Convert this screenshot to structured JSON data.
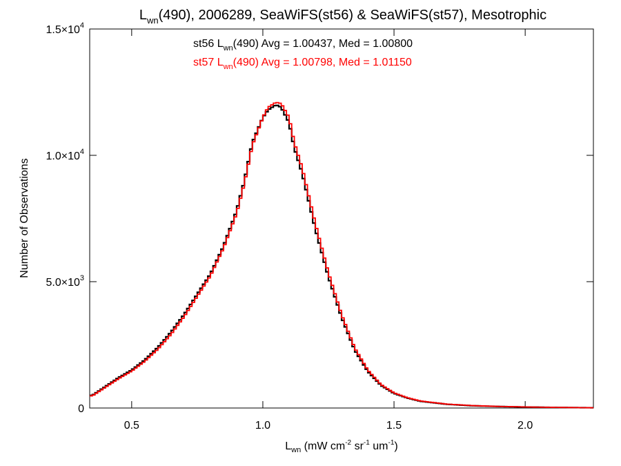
{
  "chart_data": {
    "type": "line",
    "title": {
      "main": "L",
      "main_sub": "wn",
      "main_rest": "(490), 2006289, SeaWiFS(st56) & SeaWiFS(st57), Mesotrophic"
    },
    "xlabel": {
      "main": "L",
      "main_sub": "wn",
      "p1": " (mW cm",
      "sup1": "-2",
      "p2": " sr",
      "sup2": "-1",
      "p3": " um",
      "sup3": "-1",
      "p4": ")"
    },
    "ylabel": "Number of Observations",
    "xlim": [
      0.34,
      2.26
    ],
    "ylim": [
      0,
      15000
    ],
    "x_ticks": [
      {
        "value": 0.5,
        "label": "0.5"
      },
      {
        "value": 1.0,
        "label": "1.0"
      },
      {
        "value": 1.5,
        "label": "1.5"
      },
      {
        "value": 2.0,
        "label": "2.0"
      }
    ],
    "y_ticks": [
      {
        "value": 0,
        "mant": "0",
        "exp": ""
      },
      {
        "value": 5000,
        "mant": "5.0×10",
        "exp": "3"
      },
      {
        "value": 10000,
        "mant": "1.0×10",
        "exp": "4"
      },
      {
        "value": 15000,
        "mant": "1.5×10",
        "exp": "4"
      }
    ],
    "annotations": [
      {
        "color": "#000000",
        "p1": "st56 L",
        "sub": "wn",
        "p2": "(490) Avg = 1.00437, Med = 1.00800"
      },
      {
        "color": "#ff0000",
        "p1": "st57 L",
        "sub": "wn",
        "p2": "(490) Avg = 1.00798, Med = 1.01150"
      }
    ],
    "x": [
      0.35,
      0.4,
      0.45,
      0.5,
      0.55,
      0.6,
      0.65,
      0.7,
      0.75,
      0.8,
      0.85,
      0.9,
      0.93,
      0.96,
      1.0,
      1.02,
      1.05,
      1.07,
      1.1,
      1.12,
      1.15,
      1.2,
      1.25,
      1.3,
      1.35,
      1.4,
      1.45,
      1.5,
      1.55,
      1.6,
      1.7,
      1.8,
      1.9,
      2.0,
      2.1,
      2.26
    ],
    "series": [
      {
        "name": "st56",
        "color": "#000000",
        "values": [
          500,
          850,
          1200,
          1500,
          1900,
          2400,
          3000,
          3700,
          4500,
          5300,
          6400,
          7800,
          9000,
          10500,
          11500,
          11800,
          12000,
          11900,
          11300,
          10300,
          9300,
          7100,
          5200,
          3600,
          2300,
          1450,
          900,
          580,
          400,
          270,
          150,
          90,
          60,
          40,
          25,
          10
        ]
      },
      {
        "name": "st57",
        "color": "#ff0000",
        "values": [
          480,
          820,
          1160,
          1460,
          1850,
          2330,
          2920,
          3620,
          4420,
          5230,
          6330,
          7700,
          8900,
          10400,
          11500,
          11900,
          12100,
          12050,
          11500,
          10500,
          9500,
          7300,
          5350,
          3700,
          2380,
          1500,
          930,
          600,
          410,
          280,
          155,
          95,
          62,
          42,
          26,
          10
        ]
      }
    ]
  }
}
